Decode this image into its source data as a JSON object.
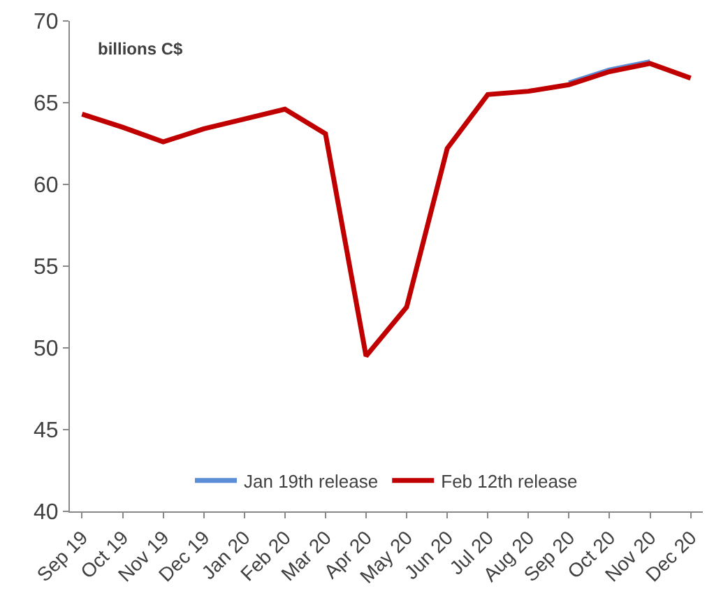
{
  "chart_data": {
    "type": "line",
    "categories": [
      "Sep 19",
      "Oct 19",
      "Nov 19",
      "Dec 19",
      "Jan 20",
      "Feb 20",
      "Mar 20",
      "Apr 20",
      "May 20",
      "Jun 20",
      "Jul 20",
      "Aug 20",
      "Sep 20",
      "Oct 20",
      "Nov 20",
      "Dec 20"
    ],
    "series": [
      {
        "name": "Jan 19th release",
        "color": "#5b8ed6",
        "values": [
          null,
          null,
          null,
          null,
          null,
          null,
          null,
          null,
          null,
          null,
          null,
          null,
          66.2,
          67.0,
          67.5,
          null
        ]
      },
      {
        "name": "Feb 12th release",
        "color": "#c00000",
        "values": [
          64.3,
          63.5,
          62.6,
          63.4,
          64.0,
          64.6,
          63.1,
          49.5,
          52.5,
          62.2,
          65.5,
          65.7,
          66.1,
          66.9,
          67.4,
          66.5
        ]
      }
    ],
    "ylim": [
      40,
      70
    ],
    "yticks": [
      40,
      45,
      50,
      55,
      60,
      65,
      70
    ],
    "annotations": [
      "billions C$"
    ],
    "legend": "bottom",
    "marker": "none",
    "line_style": "solid"
  }
}
